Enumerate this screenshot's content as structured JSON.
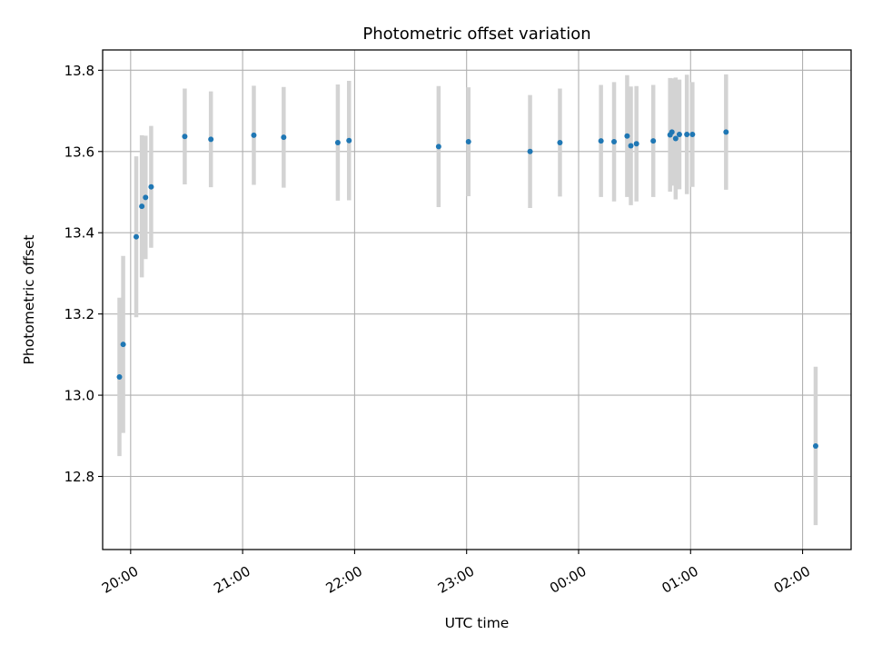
{
  "chart_data": {
    "type": "scatter",
    "title": "Photometric offset variation",
    "xlabel": "UTC time",
    "ylabel": "Photometric offset",
    "xlim": [
      "19:45",
      "02:26"
    ],
    "ylim": [
      12.62,
      13.85
    ],
    "grid": true,
    "x_ticks": [
      "20:00",
      "21:00",
      "22:00",
      "23:00",
      "00:00",
      "01:00",
      "02:00"
    ],
    "y_ticks": [
      "12.8",
      "13.0",
      "13.2",
      "13.4",
      "13.6",
      "13.8"
    ],
    "colors": {
      "point": "#1f77b4",
      "errorbar": "#d3d3d3",
      "grid": "#b0b0b0"
    },
    "points": [
      {
        "x": "19:54",
        "y": 13.045,
        "err": 0.195
      },
      {
        "x": "19:56",
        "y": 13.125,
        "err": 0.218
      },
      {
        "x": "20:03",
        "y": 13.39,
        "err": 0.198
      },
      {
        "x": "20:06",
        "y": 13.465,
        "err": 0.175
      },
      {
        "x": "20:08",
        "y": 13.487,
        "err": 0.152
      },
      {
        "x": "20:11",
        "y": 13.513,
        "err": 0.15
      },
      {
        "x": "20:29",
        "y": 13.637,
        "err": 0.118
      },
      {
        "x": "20:43",
        "y": 13.63,
        "err": 0.118
      },
      {
        "x": "21:06",
        "y": 13.64,
        "err": 0.122
      },
      {
        "x": "21:22",
        "y": 13.635,
        "err": 0.124
      },
      {
        "x": "21:51",
        "y": 13.622,
        "err": 0.143
      },
      {
        "x": "21:57",
        "y": 13.627,
        "err": 0.147
      },
      {
        "x": "22:45",
        "y": 13.612,
        "err": 0.149
      },
      {
        "x": "23:01",
        "y": 13.624,
        "err": 0.134
      },
      {
        "x": "23:34",
        "y": 13.6,
        "err": 0.139
      },
      {
        "x": "23:50",
        "y": 13.622,
        "err": 0.133
      },
      {
        "x": "00:12",
        "y": 13.626,
        "err": 0.138
      },
      {
        "x": "00:19",
        "y": 13.624,
        "err": 0.147
      },
      {
        "x": "00:26",
        "y": 13.638,
        "err": 0.15
      },
      {
        "x": "00:28",
        "y": 13.614,
        "err": 0.146
      },
      {
        "x": "00:31",
        "y": 13.619,
        "err": 0.142
      },
      {
        "x": "00:40",
        "y": 13.626,
        "err": 0.138
      },
      {
        "x": "00:49",
        "y": 13.641,
        "err": 0.14
      },
      {
        "x": "00:50",
        "y": 13.648,
        "err": 0.132
      },
      {
        "x": "00:52",
        "y": 13.632,
        "err": 0.15
      },
      {
        "x": "00:54",
        "y": 13.642,
        "err": 0.135
      },
      {
        "x": "00:58",
        "y": 13.642,
        "err": 0.147
      },
      {
        "x": "01:01",
        "y": 13.642,
        "err": 0.129
      },
      {
        "x": "01:19",
        "y": 13.648,
        "err": 0.142
      },
      {
        "x": "02:07",
        "y": 12.875,
        "err": 0.195
      }
    ]
  }
}
